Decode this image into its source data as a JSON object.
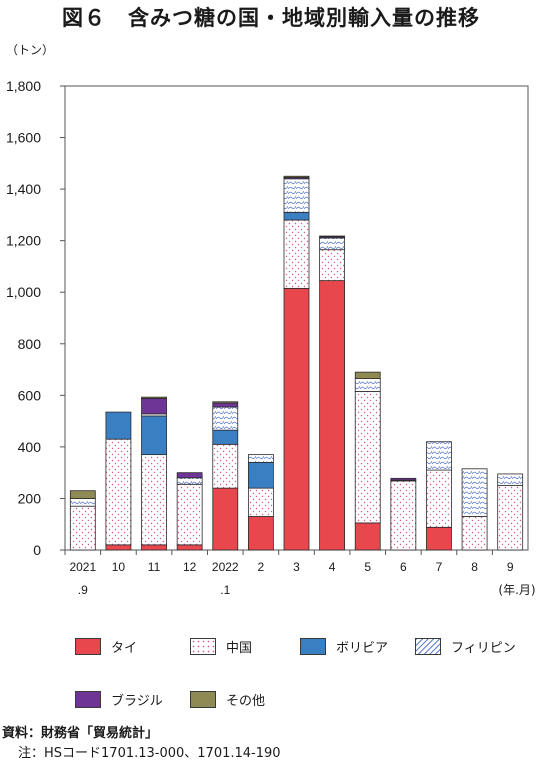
{
  "title": "図６　含みつ糖の国・地域別輸入量の推移",
  "unit": "（トン）",
  "chart_data": {
    "type": "bar",
    "stacked": true,
    "categories": [
      "2021\n.9",
      "10",
      "11",
      "12",
      "2022\n.1",
      "2",
      "3",
      "4",
      "5",
      "6",
      "7",
      "8",
      "9"
    ],
    "x_unit": "(年.月)",
    "ylim": [
      0,
      1800
    ],
    "yticks": [
      0,
      200,
      400,
      600,
      800,
      1000,
      1200,
      1400,
      1600,
      1800
    ],
    "grid": false,
    "legend_position": "bottom",
    "series": [
      {
        "name": "タイ",
        "color": "#e8474d",
        "pattern": "solid",
        "values": [
          0,
          20,
          20,
          20,
          240,
          130,
          1015,
          1045,
          105,
          0,
          88,
          0,
          0
        ]
      },
      {
        "name": "中国",
        "color": "#ffffff",
        "pattern": "dots",
        "values": [
          170,
          410,
          350,
          235,
          170,
          110,
          265,
          120,
          510,
          268,
          222,
          130,
          250
        ]
      },
      {
        "name": "ボリビア",
        "color": "#3a7fc1",
        "pattern": "solid",
        "values": [
          0,
          105,
          150,
          0,
          55,
          100,
          30,
          0,
          0,
          0,
          0,
          0,
          0
        ]
      },
      {
        "name": "フィリピン",
        "color": "#ffffff",
        "pattern": "waves",
        "values": [
          30,
          0,
          8,
          25,
          90,
          30,
          130,
          45,
          50,
          3,
          110,
          185,
          45
        ]
      },
      {
        "name": "ブラジル",
        "color": "#6f3596",
        "pattern": "solid",
        "values": [
          0,
          0,
          60,
          20,
          15,
          0,
          5,
          5,
          0,
          7,
          0,
          0,
          0
        ]
      },
      {
        "name": "その他",
        "color": "#8f8a54",
        "pattern": "solid",
        "values": [
          30,
          0,
          5,
          0,
          5,
          0,
          5,
          3,
          25,
          0,
          0,
          0,
          0
        ]
      }
    ]
  },
  "legend": [
    {
      "name": "タイ",
      "color": "#e8474d"
    },
    {
      "name": "中国",
      "color": "#ffffff"
    },
    {
      "name": "ボリビア",
      "color": "#3a7fc1"
    },
    {
      "name": "フィリピン",
      "color": "#ffffff"
    },
    {
      "name": "ブラジル",
      "color": "#6f3596"
    },
    {
      "name": "その他",
      "color": "#8f8a54"
    }
  ],
  "footer": {
    "source": "資料：財務省「貿易統計」",
    "note": "注：HSコード1701.13-000、1701.14-190"
  }
}
